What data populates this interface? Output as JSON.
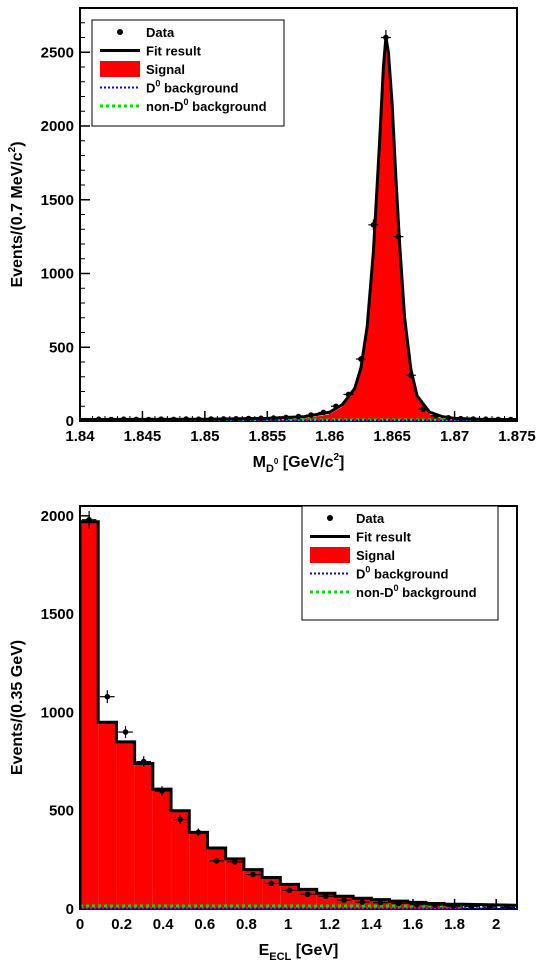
{
  "chart_data": [
    {
      "type": "line",
      "xlabel": "M",
      "xlabel_sub": "D",
      "xlabel_subsup": "0",
      "xlabel_unit": "[GeV/c",
      "xlabel_unit_sup": "2",
      "xlabel_unit_end": "]",
      "ylabel": "Events/(0.7 MeV/c",
      "ylabel_sup": "2",
      "ylabel_end": ")",
      "xlim": [
        1.84,
        1.875
      ],
      "ylim": [
        0,
        2800
      ],
      "x_ticks": [
        "1.84",
        "1.845",
        "1.85",
        "1.855",
        "1.86",
        "1.865",
        "1.87",
        "1.875"
      ],
      "x_tick_values": [
        1.84,
        1.845,
        1.85,
        1.855,
        1.86,
        1.865,
        1.87,
        1.875
      ],
      "y_ticks": [
        "0",
        "500",
        "1000",
        "1500",
        "2000",
        "2500"
      ],
      "y_tick_values": [
        0,
        500,
        1000,
        1500,
        2000,
        2500
      ],
      "legend_position": "top-left",
      "legend": [
        {
          "label": "Data",
          "style": "marker"
        },
        {
          "label": "Fit result",
          "style": "line"
        },
        {
          "label": "Signal",
          "style": "fill"
        },
        {
          "label": "D",
          "sup": "0",
          "label_end": " background",
          "style": "dotted-blue"
        },
        {
          "label": "non-D",
          "sup": "0",
          "label_end": " background",
          "style": "dotted-green"
        }
      ],
      "series": [
        {
          "name": "Data",
          "x": [
            1.8415,
            1.8425,
            1.8435,
            1.8445,
            1.8455,
            1.8465,
            1.8475,
            1.8485,
            1.8495,
            1.8505,
            1.8515,
            1.8525,
            1.8535,
            1.8545,
            1.8555,
            1.8565,
            1.8575,
            1.8585,
            1.8595,
            1.8605,
            1.8615,
            1.8625,
            1.8635,
            1.8645,
            1.8655,
            1.8665,
            1.8675,
            1.8685,
            1.8695,
            1.8705,
            1.8715,
            1.8725,
            1.8735,
            1.8745
          ],
          "y": [
            12,
            10,
            12,
            11,
            10,
            12,
            11,
            13,
            12,
            13,
            14,
            15,
            17,
            18,
            20,
            24,
            30,
            40,
            58,
            100,
            180,
            420,
            1330,
            2600,
            1250,
            310,
            80,
            35,
            22,
            16,
            13,
            12,
            11,
            10
          ]
        }
      ],
      "fit_curve": {
        "name": "Fit result",
        "x": [
          1.84,
          1.85,
          1.855,
          1.858,
          1.86,
          1.861,
          1.862,
          1.8625,
          1.863,
          1.8635,
          1.864,
          1.8643,
          1.8645,
          1.8647,
          1.865,
          1.8653,
          1.8656,
          1.866,
          1.8665,
          1.867,
          1.868,
          1.869,
          1.87,
          1.872,
          1.875
        ],
        "y": [
          10,
          12,
          18,
          30,
          60,
          110,
          220,
          360,
          640,
          1150,
          1900,
          2400,
          2600,
          2500,
          2150,
          1650,
          1200,
          700,
          350,
          170,
          60,
          30,
          18,
          12,
          10
        ]
      },
      "signal": {
        "name": "Signal",
        "x": [
          1.84,
          1.855,
          1.858,
          1.86,
          1.861,
          1.862,
          1.8625,
          1.863,
          1.8635,
          1.864,
          1.8643,
          1.8645,
          1.8647,
          1.865,
          1.8653,
          1.8656,
          1.866,
          1.8665,
          1.867,
          1.868,
          1.869,
          1.87,
          1.875
        ],
        "y": [
          0,
          4,
          16,
          46,
          96,
          206,
          346,
          626,
          1136,
          1886,
          2386,
          2586,
          2486,
          2136,
          1636,
          1186,
          686,
          336,
          156,
          46,
          16,
          4,
          0
        ]
      },
      "bkg_d0": {
        "name": "D0 background",
        "level": 3
      },
      "bkg_non_d0": {
        "name": "non-D0 background",
        "level": 8
      }
    },
    {
      "type": "bar",
      "xlabel": "E",
      "xlabel_sub": "ECL",
      "xlabel_unit": "[GeV]",
      "ylabel": "Events/(0.35 GeV)",
      "xlim": [
        0,
        2.1
      ],
      "ylim": [
        0,
        2050
      ],
      "x_ticks": [
        "0",
        "0.2",
        "0.4",
        "0.6",
        "0.8",
        "1",
        "1.2",
        "1.4",
        "1.6",
        "1.8",
        "2"
      ],
      "x_tick_values": [
        0,
        0.2,
        0.4,
        0.6,
        0.8,
        1.0,
        1.2,
        1.4,
        1.6,
        1.8,
        2.0
      ],
      "y_ticks": [
        "0",
        "500",
        "1000",
        "1500",
        "2000"
      ],
      "y_tick_values": [
        0,
        500,
        1000,
        1500,
        2000
      ],
      "legend_position": "top-right",
      "legend": [
        {
          "label": "Data",
          "style": "marker"
        },
        {
          "label": "Fit result",
          "style": "line"
        },
        {
          "label": "Signal",
          "style": "fill"
        },
        {
          "label": "D",
          "sup": "0",
          "label_end": " background",
          "style": "dotted-blue"
        },
        {
          "label": "non-D",
          "sup": "0",
          "label_end": " background",
          "style": "dotted-green"
        }
      ],
      "bin_width": 0.0875,
      "fit_values": [
        1970,
        950,
        850,
        740,
        610,
        500,
        390,
        310,
        255,
        200,
        160,
        125,
        100,
        80,
        65,
        55,
        48,
        40,
        34,
        28,
        24
      ],
      "series": [
        {
          "name": "Data",
          "x": [
            0.04375,
            0.13125,
            0.21875,
            0.30625,
            0.39375,
            0.48125,
            0.56875,
            0.65625,
            0.74375,
            0.83125,
            0.91875,
            1.00625,
            1.09375,
            1.18125,
            1.26875,
            1.35625,
            1.44375,
            1.53125,
            1.61875,
            1.70625,
            1.79375,
            1.88125,
            1.96875,
            2.05625
          ],
          "y": [
            1980,
            1080,
            900,
            750,
            600,
            455,
            390,
            245,
            240,
            175,
            130,
            95,
            75,
            65,
            45,
            35,
            32,
            28,
            22,
            20,
            14,
            12,
            10,
            8
          ]
        }
      ],
      "bkg_d0": {
        "name": "D0 background",
        "level": 2
      },
      "bkg_non_d0": {
        "name": "non-D0 background",
        "level": 15
      }
    }
  ],
  "colors": {
    "signal_fill": "#ff0000",
    "fit_line": "#000000",
    "d0_background": "#0000ff",
    "non_d0_background": "#00dd00",
    "data_marker": "#000000"
  }
}
